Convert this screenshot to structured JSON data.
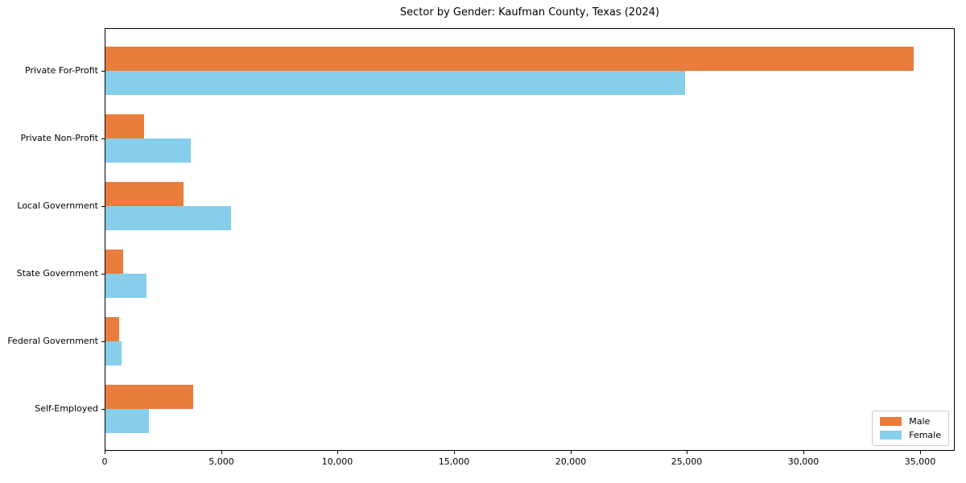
{
  "chart_data": {
    "type": "bar",
    "orientation": "horizontal",
    "title": "Sector by Gender: Kaufman County, Texas (2024)",
    "xlabel": "",
    "ylabel": "",
    "categories": [
      "Private For-Profit",
      "Private Non-Profit",
      "Local Government",
      "State Government",
      "Federal Government",
      "Self-Employed"
    ],
    "series": [
      {
        "name": "Male",
        "color": "#e87d3c",
        "values": [
          34700,
          1650,
          3350,
          750,
          575,
          3775
        ]
      },
      {
        "name": "Female",
        "color": "#87ceeb",
        "values": [
          24900,
          3650,
          5400,
          1750,
          700,
          1875
        ]
      }
    ],
    "xlim": [
      0,
      36500
    ],
    "xticks": [
      0,
      5000,
      10000,
      15000,
      20000,
      25000,
      30000,
      35000
    ],
    "xtick_labels": [
      "0",
      "5,000",
      "10,000",
      "15,000",
      "20,000",
      "25,000",
      "30,000",
      "35,000"
    ],
    "grid": false,
    "legend_position": "lower right"
  }
}
